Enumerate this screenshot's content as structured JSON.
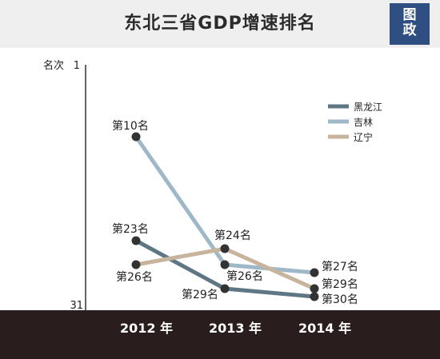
{
  "chart_data": {
    "type": "line",
    "title": "东北三省GDP增速排名",
    "badge": [
      "图",
      "政"
    ],
    "ylabel": "名次",
    "yticks": [
      "1",
      "31"
    ],
    "ylim": [
      1,
      31
    ],
    "y_inverted": true,
    "grid": false,
    "legend_position": "top-right",
    "categories": [
      "2012 年",
      "2013 年",
      "2014 年"
    ],
    "colors": {
      "axis": "#333333",
      "marker": "#333333",
      "band": "#2a1d1d"
    },
    "series": [
      {
        "name": "黑龙江",
        "color": "#5f7785",
        "values": [
          23,
          29,
          30
        ],
        "labels": [
          "第23名",
          "第29名",
          "第30名"
        ]
      },
      {
        "name": "吉林",
        "color": "#9fb8c8",
        "values": [
          10,
          26,
          27
        ],
        "labels": [
          "第10名",
          "第26名",
          "第27名"
        ]
      },
      {
        "name": "辽宁",
        "color": "#c8b49d",
        "values": [
          26,
          24,
          29
        ],
        "labels": [
          "第26名",
          "第24名",
          "第29名"
        ]
      }
    ]
  }
}
